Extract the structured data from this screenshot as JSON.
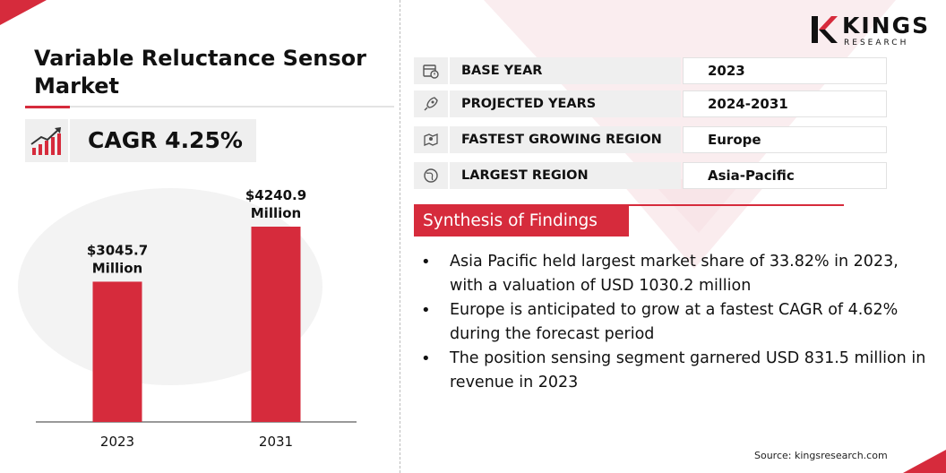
{
  "brand": {
    "name": "KINGS",
    "sub": "RESEARCH"
  },
  "title": "Variable Reluctance Sensor Market",
  "cagr": {
    "text": "CAGR 4.25%"
  },
  "info_rows": [
    {
      "icon": "calendar-clock-icon",
      "label": "BASE YEAR",
      "value": "2023"
    },
    {
      "icon": "rocket-icon",
      "label": "PROJECTED YEARS",
      "value": "2024-2031"
    },
    {
      "icon": "region-map-icon",
      "label": "FASTEST GROWING REGION",
      "value": "Europe"
    },
    {
      "icon": "globe-icon",
      "label": "LARGEST REGION",
      "value": "Asia-Pacific"
    }
  ],
  "synthesis": {
    "title": "Synthesis of Findings",
    "items": [
      "Asia Pacific held largest market share of 33.82% in 2023, with a valuation of USD 1030.2 million",
      "Europe is anticipated to grow at a fastest CAGR of 4.62% during the forecast period",
      "The position sensing segment garnered USD 831.5 million in revenue in 2023"
    ]
  },
  "source": "Source: kingsresearch.com",
  "colors": {
    "accent": "#d62b3c",
    "panel": "#efefef",
    "text": "#111111"
  },
  "chart_data": {
    "type": "bar",
    "categories": [
      "2023",
      "2031"
    ],
    "values": [
      3045.7,
      4240.9
    ],
    "data_labels": [
      [
        "$3045.7",
        "Million"
      ],
      [
        "$4240.9",
        "Million"
      ]
    ],
    "title": "",
    "xlabel": "",
    "ylabel": "",
    "ylim": [
      0,
      4240.9
    ],
    "grid": false,
    "legend": "none",
    "bar_color": "#d62b3c"
  }
}
